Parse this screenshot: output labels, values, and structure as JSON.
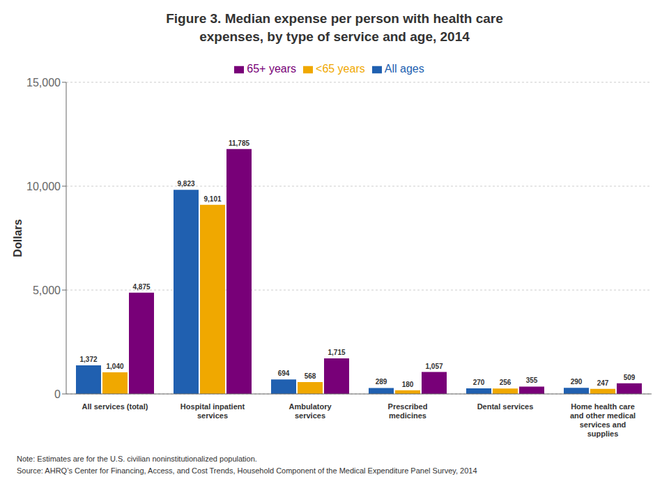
{
  "chart_data": {
    "type": "bar",
    "title": "Figure 3. Median expense per person with health care\nexpenses, by type of service and age, 2014",
    "ylabel": "Dollars",
    "categories": [
      "All services (total)",
      "Hospital inpatient\nservices",
      "Ambulatory\nservices",
      "Prescribed\nmedicines",
      "Dental services",
      "Home health care\nand other medical\nservices and\nsupplies"
    ],
    "series": [
      {
        "name": "All ages",
        "color": "#2060b0",
        "values": [
          1372,
          9823,
          694,
          289,
          270,
          290
        ],
        "value_labels": [
          "1,372",
          "9,823",
          "694",
          "289",
          "270",
          "290"
        ]
      },
      {
        "name": "<65 years",
        "color": "#f0a800",
        "values": [
          1040,
          9101,
          568,
          180,
          256,
          247
        ],
        "value_labels": [
          "1,040",
          "9,101",
          "568",
          "180",
          "256",
          "247"
        ]
      },
      {
        "name": "65+ years",
        "color": "#780078",
        "values": [
          4875,
          11785,
          1715,
          1057,
          355,
          509
        ],
        "value_labels": [
          "4,875",
          "11,785",
          "1,715",
          "1,057",
          "355",
          "509"
        ]
      }
    ],
    "ylim": [
      0,
      15000
    ],
    "yticks": [
      0,
      {
        "value": 5000,
        "label": "5,000"
      },
      {
        "value": 10000,
        "label": "10,000"
      },
      {
        "value": 15000,
        "label": "15,000"
      }
    ],
    "grid": true,
    "legend": "top",
    "data_labels": true,
    "annotations": [
      "Note: Estimates are for the U.S. civilian noninstitutionalized population.",
      "Source: AHRQ’s Center for Financing, Access, and Cost Trends, Household Component of the Medical Expenditure Panel Survey,  2014"
    ]
  }
}
